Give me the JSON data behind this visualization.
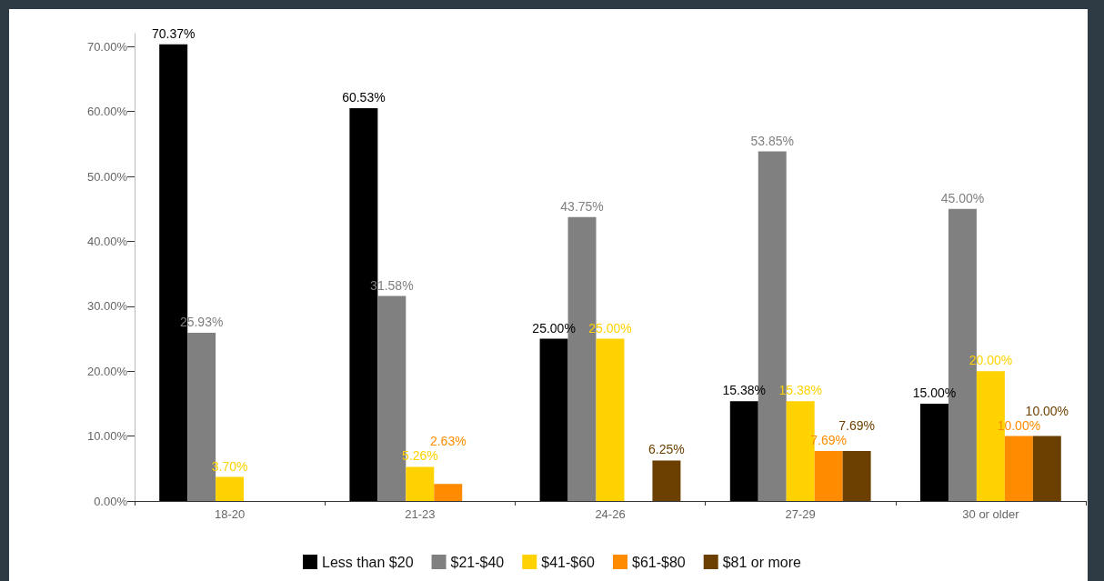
{
  "chart_data": {
    "type": "bar",
    "categories": [
      "18-20",
      "21-23",
      "24-26",
      "27-29",
      "30 or older"
    ],
    "series": [
      {
        "name": "Less than $20",
        "color": "#000000",
        "values": [
          70.37,
          60.53,
          25.0,
          15.38,
          15.0
        ],
        "value_labels": [
          "70.37%",
          "60.53%",
          "25.00%",
          "15.38%",
          "15.00%"
        ]
      },
      {
        "name": "$21-$40",
        "color": "#808080",
        "values": [
          25.93,
          31.58,
          43.75,
          53.85,
          45.0
        ],
        "value_labels": [
          "25.93%",
          "31.58%",
          "43.75%",
          "53.85%",
          "45.00%"
        ]
      },
      {
        "name": "$41-$60",
        "color": "#ffd200",
        "values": [
          3.7,
          5.26,
          25.0,
          15.38,
          20.0
        ],
        "value_labels": [
          "3.70%",
          "5.26%",
          "25.00%",
          "15.38%",
          "20.00%"
        ]
      },
      {
        "name": "$61-$80",
        "color": "#ff8c00",
        "values": [
          null,
          2.63,
          null,
          7.69,
          10.0
        ],
        "value_labels": [
          null,
          "2.63%",
          null,
          "7.69%",
          "10.00%"
        ]
      },
      {
        "name": "$81 or more",
        "color": "#6b3f00",
        "values": [
          null,
          null,
          6.25,
          7.69,
          10.0
        ],
        "value_labels": [
          null,
          null,
          "6.25%",
          "7.69%",
          "10.00%"
        ]
      }
    ],
    "ylim": [
      0,
      72
    ],
    "yticks": [
      {
        "value": 0,
        "label": "0.00%"
      },
      {
        "value": 10,
        "label": "10.00%"
      },
      {
        "value": 20,
        "label": "20.00%"
      },
      {
        "value": 30,
        "label": "30.00%"
      },
      {
        "value": 40,
        "label": "40.00%"
      },
      {
        "value": 50,
        "label": "50.00%"
      },
      {
        "value": 60,
        "label": "60.00%"
      },
      {
        "value": 70,
        "label": "70.00%"
      }
    ],
    "grid": false,
    "legend": "bottom"
  }
}
